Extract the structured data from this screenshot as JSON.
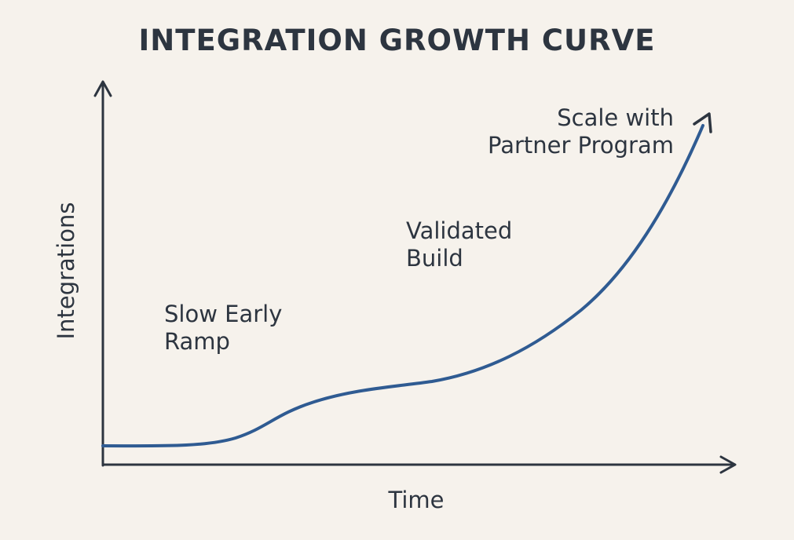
{
  "title": "INTEGRATION GROWTH CURVE",
  "axes": {
    "x_label": "Time",
    "y_label": "Integrations"
  },
  "stages": [
    {
      "line1": "Slow Early",
      "line2": "Ramp"
    },
    {
      "line1": "Validated",
      "line2": "Build"
    },
    {
      "line1": "Scale with",
      "line2": "Partner Program"
    }
  ],
  "colors": {
    "background": "#f6f2ec",
    "axis": "#2d3540",
    "curve": "#2f5b92",
    "text": "#2d3540"
  }
}
